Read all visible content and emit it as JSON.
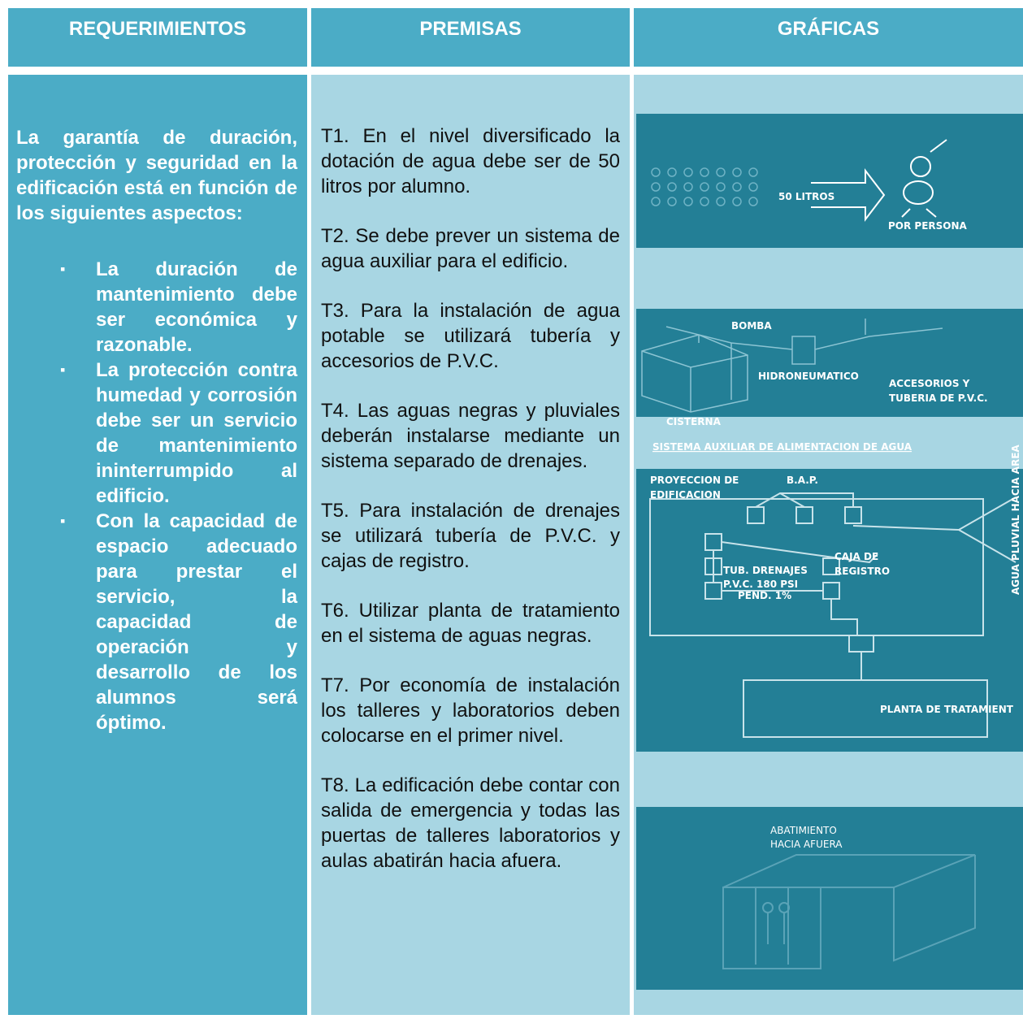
{
  "table": {
    "headers": [
      "REQUERIMIENTOS",
      "PREMISAS",
      "GRÁFICAS"
    ],
    "requirements": {
      "intro": "La garantía de duración, protección y seguridad en la edificación está en función de los siguientes aspectos:",
      "items": [
        "La duración de mantenimiento debe ser económica y razonable.",
        "La protección contra humedad y corrosión debe ser un servicio de mantenimiento ininterrumpido al edificio.",
        "Con la capacidad de espacio adecuado para prestar el servicio, la capacidad de operación y desarrollo de los alumnos será óptimo."
      ]
    },
    "premises": [
      "T1. En el nivel diversificado la dotación de agua debe ser de 50 litros por alumno.",
      "T2. Se debe prever un sistema de agua auxiliar para el edificio.",
      "T3. Para la instalación de agua potable se utilizará tubería y accesorios de P.V.C.",
      "T4. Las aguas negras y pluviales deberán instalarse mediante un sistema separado de drenajes.",
      "T5. Para instalación de drenajes se utilizará tubería de P.V.C. y cajas de registro.",
      "T6. Utilizar planta de tratamiento en el sistema de aguas negras.",
      "T7. Por economía de instalación los talleres y laboratorios deben colocarse en el primer nivel.",
      "T8. La edificación debe contar con salida de emergencia y todas las puertas de talleres laboratorios y aulas abatirán hacia afuera."
    ],
    "graphics": {
      "water": {
        "amount": "50 LITROS",
        "per": "POR PERSONA"
      },
      "auxiliary": {
        "pump": "BOMBA",
        "tank": "HIDRONEUMATICO",
        "fittings": [
          "ACCESORIOS Y",
          "TUBERIA DE P.V.C."
        ],
        "cistern": "CISTERNA",
        "caption": "SISTEMA AUXILIAR DE ALIMENTACION DE AGUA"
      },
      "drainage": {
        "projection": [
          "PROYECCION DE",
          "EDIFICACION"
        ],
        "bap": "B.A.P.",
        "rain": "AGUA PLUVIAL HACIA AREA",
        "box": [
          "CAJA DE",
          "REGISTRO"
        ],
        "pipe": [
          "TUB. DRENAJES",
          "P.V.C. 180 PSI"
        ],
        "slope": "PEND. 1%",
        "plant": "PLANTA DE TRATAMIENT"
      },
      "doors": {
        "label": [
          "ABATIMIENTO",
          "HACIA AFUERA"
        ]
      }
    }
  }
}
